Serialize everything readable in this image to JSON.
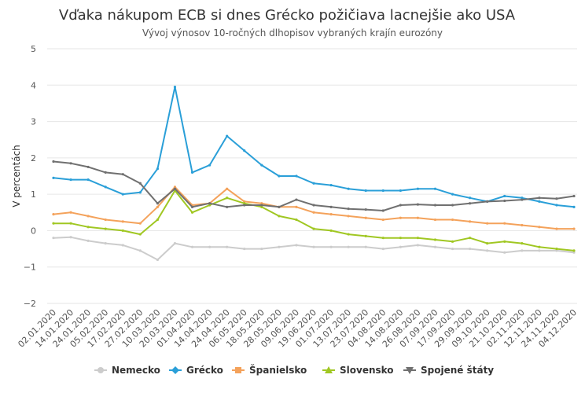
{
  "chart_data": {
    "type": "line",
    "title": "Vďaka nákupom ECB si dnes Grécko požičiava lacnejšie ako USA",
    "subtitle": "Vývoj výnosov 10-ročných dlhopisov vybraných krajín eurozóny",
    "xlabel": "",
    "ylabel": "V percentách",
    "ylim": [
      -2,
      5
    ],
    "yticks": [
      "−2",
      "−1",
      "0",
      "1",
      "2",
      "3",
      "4",
      "5"
    ],
    "ytick_values": [
      -2,
      -1,
      0,
      1,
      2,
      3,
      4,
      5
    ],
    "grid": true,
    "legend_position": "bottom",
    "x": [
      "02.01.2020",
      "14.01.2020",
      "24.01.2020",
      "05.02.2020",
      "17.02.2020",
      "27.02.2020",
      "10.03.2020",
      "20.03.2020",
      "01.04.2020",
      "14.04.2020",
      "24.04.2020",
      "06.05.2020",
      "18.05.2020",
      "28.05.2020",
      "09.06.2020",
      "19.06.2020",
      "01.07.2020",
      "13.07.2020",
      "23.07.2020",
      "04.08.2020",
      "14.08.2020",
      "26.08.2020",
      "07.09.2020",
      "17.09.2020",
      "29.09.2020",
      "09.10.2020",
      "21.10.2020",
      "02.11.2020",
      "12.11.2020",
      "24.11.2020",
      "04.12.2020"
    ],
    "series": [
      {
        "name": "Nemecko",
        "color": "#cccccc",
        "marker": "circle",
        "values": [
          -0.2,
          -0.18,
          -0.28,
          -0.35,
          -0.4,
          -0.55,
          -0.8,
          -0.35,
          -0.45,
          -0.45,
          -0.45,
          -0.5,
          -0.5,
          -0.45,
          -0.4,
          -0.45,
          -0.45,
          -0.45,
          -0.45,
          -0.5,
          -0.45,
          -0.4,
          -0.45,
          -0.5,
          -0.5,
          -0.55,
          -0.6,
          -0.55,
          -0.55,
          -0.55,
          -0.6
        ]
      },
      {
        "name": "Grécko",
        "color": "#2a9fd8",
        "marker": "diamond",
        "values": [
          1.45,
          1.4,
          1.4,
          1.2,
          1.0,
          1.05,
          1.7,
          3.95,
          1.6,
          1.8,
          2.6,
          2.2,
          1.8,
          1.5,
          1.5,
          1.3,
          1.25,
          1.15,
          1.1,
          1.1,
          1.1,
          1.15,
          1.15,
          1.0,
          0.9,
          0.8,
          0.95,
          0.9,
          0.8,
          0.7,
          0.65
        ]
      },
      {
        "name": "Španielsko",
        "color": "#f4a25b",
        "marker": "square",
        "values": [
          0.45,
          0.5,
          0.4,
          0.3,
          0.25,
          0.2,
          0.65,
          1.2,
          0.7,
          0.75,
          1.15,
          0.8,
          0.75,
          0.65,
          0.65,
          0.5,
          0.45,
          0.4,
          0.35,
          0.3,
          0.35,
          0.35,
          0.3,
          0.3,
          0.25,
          0.2,
          0.2,
          0.15,
          0.1,
          0.05,
          0.05
        ]
      },
      {
        "name": "Slovensko",
        "color": "#a0c722",
        "marker": "triangle",
        "values": [
          0.2,
          0.2,
          0.1,
          0.05,
          0.0,
          -0.1,
          0.3,
          1.1,
          0.5,
          0.7,
          0.9,
          0.75,
          0.65,
          0.4,
          0.3,
          0.05,
          0.0,
          -0.1,
          -0.15,
          -0.2,
          -0.2,
          -0.2,
          -0.25,
          -0.3,
          -0.2,
          -0.35,
          -0.3,
          -0.35,
          -0.45,
          -0.5,
          -0.55
        ]
      },
      {
        "name": "Spojené štáty",
        "color": "#707070",
        "marker": "triangle-down",
        "values": [
          1.9,
          1.85,
          1.75,
          1.6,
          1.55,
          1.3,
          0.75,
          1.15,
          0.65,
          0.75,
          0.65,
          0.7,
          0.7,
          0.65,
          0.85,
          0.7,
          0.65,
          0.6,
          0.58,
          0.55,
          0.7,
          0.72,
          0.7,
          0.7,
          0.75,
          0.8,
          0.82,
          0.85,
          0.9,
          0.88,
          0.95
        ]
      }
    ]
  }
}
